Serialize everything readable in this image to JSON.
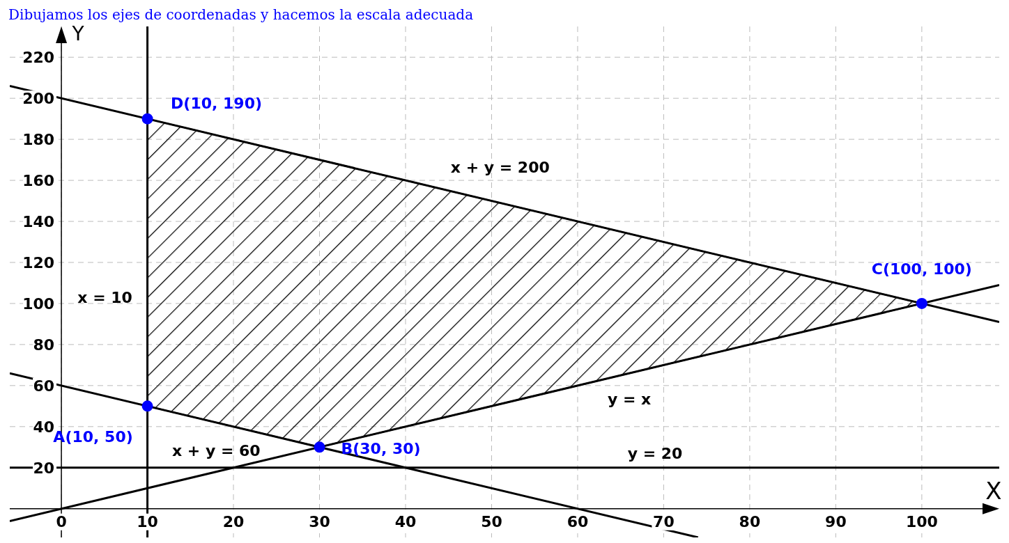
{
  "chart_data": {
    "type": "line",
    "title": "Dibujamos los ejes de coordenadas y hacemos la escala adecuada",
    "xlabel": "X",
    "ylabel": "Y",
    "xlim": [
      -6,
      109
    ],
    "ylim": [
      -14,
      235
    ],
    "xticks": [
      0,
      10,
      20,
      30,
      40,
      50,
      60,
      70,
      80,
      90,
      100
    ],
    "yticks": [
      20,
      40,
      60,
      80,
      100,
      120,
      140,
      160,
      180,
      200,
      220
    ],
    "grid": true,
    "series": [
      {
        "type": "area",
        "color": "#000000",
        "x": [
          10,
          30,
          100,
          10
        ],
        "values": [
          50,
          30,
          100,
          190
        ]
      },
      {
        "color": "#000000",
        "x": [
          -6,
          109
        ],
        "values": [
          206,
          91
        ]
      },
      {
        "color": "#000000",
        "x": [
          -6,
          109
        ],
        "values": [
          -6,
          109
        ]
      },
      {
        "color": "#000000",
        "x": [
          -6,
          74
        ],
        "values": [
          66,
          -14
        ]
      },
      {
        "color": "#000000",
        "x": [
          -6,
          109
        ],
        "values": [
          20,
          20
        ]
      },
      {
        "color": "#000000",
        "x": [
          10,
          10
        ],
        "values": [
          -14,
          235
        ]
      },
      {
        "type": "scatter",
        "color": "#0000ff",
        "marker": "circle",
        "x": [
          10,
          30,
          100,
          10
        ],
        "values": [
          50,
          30,
          100,
          190
        ]
      }
    ],
    "annotations": [
      {
        "text": "x + y = 200",
        "x": 51,
        "y": 149
      },
      {
        "text": "x = 10",
        "x": 10,
        "y": 103
      },
      {
        "text": "y = x",
        "x": 66,
        "y": 66
      },
      {
        "text": "x + y = 60",
        "x": 18,
        "y": 42
      },
      {
        "text": "y = 20",
        "x": 69,
        "y": 20
      },
      {
        "text": "D(10, 190)",
        "x": 10,
        "y": 190
      },
      {
        "text": "C(100, 100)",
        "x": 100,
        "y": 100
      },
      {
        "text": "A(10, 50)",
        "x": 10,
        "y": 50
      },
      {
        "text": "B(30, 30)",
        "x": 30,
        "y": 30
      }
    ]
  }
}
